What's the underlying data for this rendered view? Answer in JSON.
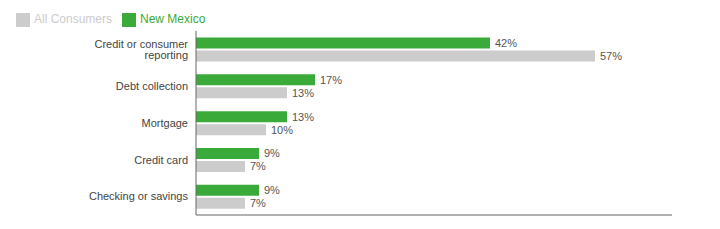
{
  "chart_data": {
    "type": "bar",
    "orientation": "horizontal",
    "categories": [
      "Credit or consumer reporting",
      "Debt collection",
      "Mortgage",
      "Credit card",
      "Checking or savings"
    ],
    "series": [
      {
        "name": "New Mexico",
        "color": "#3aaa3a",
        "values": [
          42,
          17,
          13,
          9,
          9
        ],
        "value_labels": [
          "42%",
          "17%",
          "13%",
          "9%",
          "9%"
        ]
      },
      {
        "name": "All Consumers",
        "color": "#cccccc",
        "values": [
          57,
          13,
          10,
          7,
          7
        ],
        "value_labels": [
          "57%",
          "13%",
          "10%",
          "7%",
          "7%"
        ]
      }
    ],
    "xlim": [
      0,
      68
    ],
    "data_labels": true,
    "tick_labels": "y",
    "legend": "upper left",
    "grid": false
  }
}
